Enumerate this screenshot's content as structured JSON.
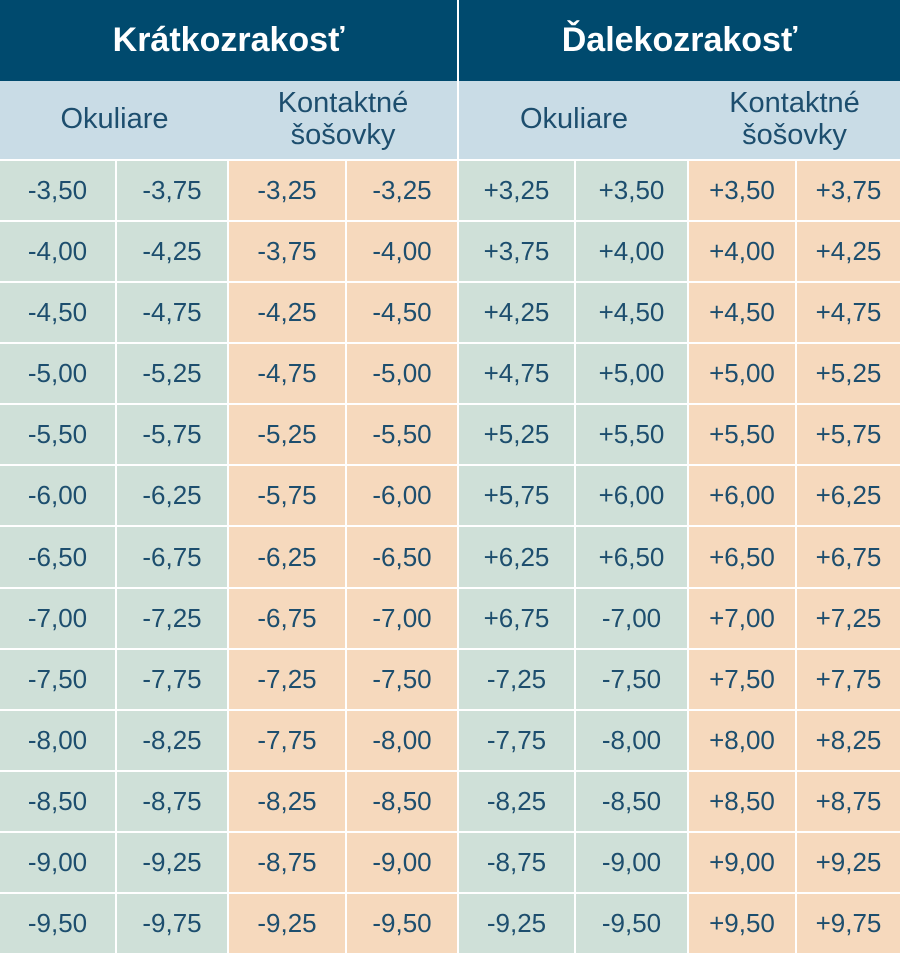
{
  "headers": {
    "short": "Krátkozrakosť",
    "far": "Ďalekozrakosť"
  },
  "subheaders": {
    "glasses": "Okuliare",
    "contacts_line1": "Kontaktné",
    "contacts_line2": "šošovky"
  },
  "colors": {
    "header_bg": "#004a6e",
    "subheader_bg": "#c9dce6",
    "glasses_bg": "#cfe0d8",
    "contacts_bg": "#f6d9bd",
    "text": "#1d4e6e"
  },
  "rows": [
    [
      "-3,50",
      "-3,75",
      "-3,25",
      "-3,25",
      "+3,25",
      "+3,50",
      "+3,50",
      "+3,75"
    ],
    [
      "-4,00",
      "-4,25",
      "-3,75",
      "-4,00",
      "+3,75",
      "+4,00",
      "+4,00",
      "+4,25"
    ],
    [
      "-4,50",
      "-4,75",
      "-4,25",
      "-4,50",
      "+4,25",
      "+4,50",
      "+4,50",
      "+4,75"
    ],
    [
      "-5,00",
      "-5,25",
      "-4,75",
      "-5,00",
      "+4,75",
      "+5,00",
      "+5,00",
      "+5,25"
    ],
    [
      "-5,50",
      "-5,75",
      "-5,25",
      "-5,50",
      "+5,25",
      "+5,50",
      "+5,50",
      "+5,75"
    ],
    [
      "-6,00",
      "-6,25",
      "-5,75",
      "-6,00",
      "+5,75",
      "+6,00",
      "+6,00",
      "+6,25"
    ],
    [
      "-6,50",
      "-6,75",
      "-6,25",
      "-6,50",
      "+6,25",
      "+6,50",
      "+6,50",
      "+6,75"
    ],
    [
      "-7,00",
      "-7,25",
      "-6,75",
      "-7,00",
      "+6,75",
      "-7,00",
      "+7,00",
      "+7,25"
    ],
    [
      "-7,50",
      "-7,75",
      "-7,25",
      "-7,50",
      "-7,25",
      "-7,50",
      "+7,50",
      "+7,75"
    ],
    [
      "-8,00",
      "-8,25",
      "-7,75",
      "-8,00",
      "-7,75",
      "-8,00",
      "+8,00",
      "+8,25"
    ],
    [
      "-8,50",
      "-8,75",
      "-8,25",
      "-8,50",
      "-8,25",
      "-8,50",
      "+8,50",
      "+8,75"
    ],
    [
      "-9,00",
      "-9,25",
      "-8,75",
      "-9,00",
      "-8,75",
      "-9,00",
      "+9,00",
      "+9,25"
    ],
    [
      "-9,50",
      "-9,75",
      "-9,25",
      "-9,50",
      "-9,25",
      "-9,50",
      "+9,50",
      "+9,75"
    ]
  ]
}
